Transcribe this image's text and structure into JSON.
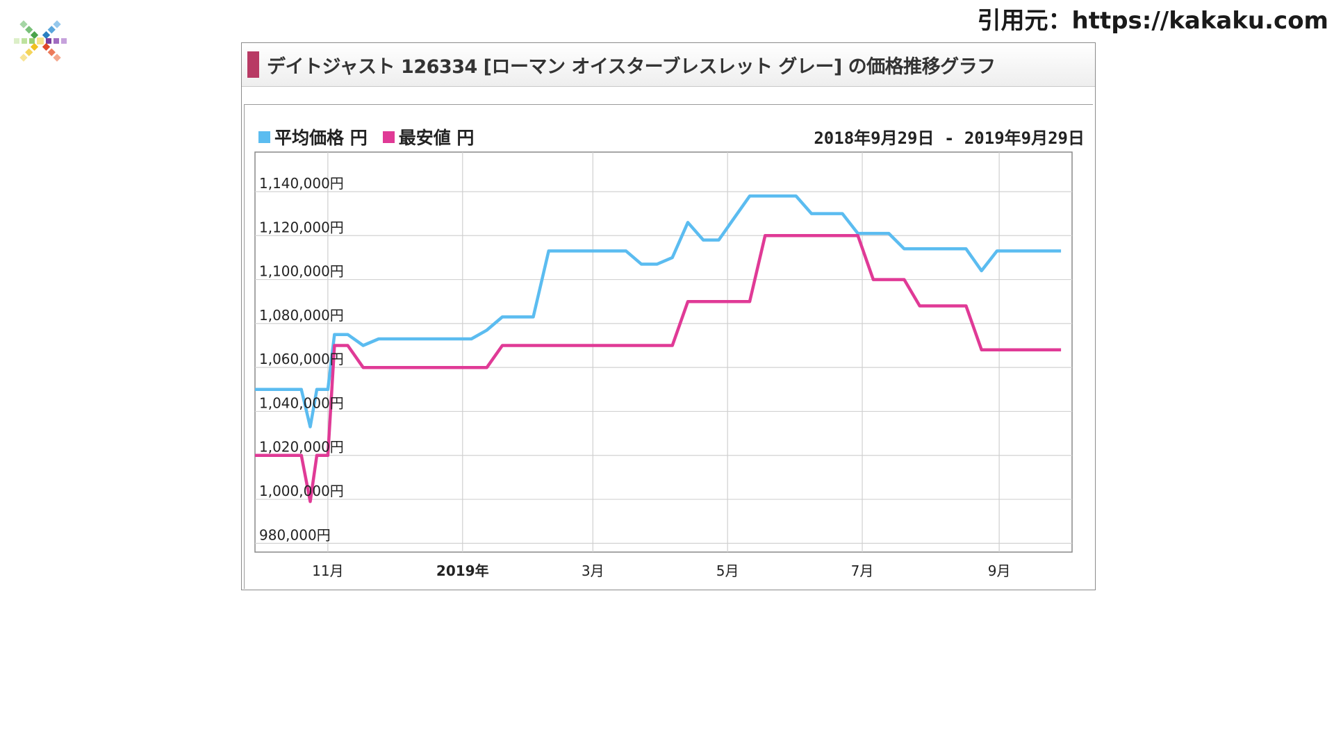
{
  "citation": "引用元：https://kakaku.com",
  "card": {
    "title": "デイトジャスト 126334 [ローマン オイスターブレスレット グレー] の価格推移グラフ",
    "date_range": "2018年9月29日 - 2019年9月29日"
  },
  "colors": {
    "average": "#5bbcf0",
    "lowest": "#e03a96",
    "header_bar": "#b83a64"
  },
  "chart_data": {
    "type": "line",
    "title": "デイトジャスト 126334 [ローマン オイスターブレスレット グレー] の価格推移グラフ",
    "xlabel": "",
    "ylabel": "",
    "x": [
      "2018-09-29",
      "2018-10-06",
      "2018-10-13",
      "2018-10-20",
      "2018-10-24",
      "2018-10-27",
      "2018-11-01",
      "2018-11-04",
      "2018-11-10",
      "2018-11-17",
      "2018-11-24",
      "2018-12-01",
      "2018-12-08",
      "2018-12-15",
      "2018-12-22",
      "2018-12-29",
      "2019-01-05",
      "2019-01-12",
      "2019-01-19",
      "2019-01-26",
      "2019-02-02",
      "2019-02-09",
      "2019-02-16",
      "2019-02-23",
      "2019-03-02",
      "2019-03-09",
      "2019-03-16",
      "2019-03-23",
      "2019-03-30",
      "2019-04-06",
      "2019-04-13",
      "2019-04-20",
      "2019-04-27",
      "2019-05-04",
      "2019-05-11",
      "2019-05-18",
      "2019-05-25",
      "2019-06-01",
      "2019-06-08",
      "2019-06-15",
      "2019-06-22",
      "2019-06-29",
      "2019-07-06",
      "2019-07-13",
      "2019-07-20",
      "2019-07-27",
      "2019-08-03",
      "2019-08-10",
      "2019-08-17",
      "2019-08-24",
      "2019-08-31",
      "2019-09-07",
      "2019-09-14",
      "2019-09-21",
      "2019-09-29"
    ],
    "series": [
      {
        "name": "平均価格 円",
        "color": "#5bbcf0",
        "values": [
          1050000,
          1050000,
          1050000,
          1050000,
          1033000,
          1050000,
          1050000,
          1075000,
          1075000,
          1070000,
          1073000,
          1073000,
          1073000,
          1073000,
          1073000,
          1073000,
          1073000,
          1077000,
          1083000,
          1083000,
          1083000,
          1113000,
          1113000,
          1113000,
          1113000,
          1113000,
          1113000,
          1107000,
          1107000,
          1110000,
          1126000,
          1118000,
          1118000,
          1128000,
          1138000,
          1138000,
          1138000,
          1138000,
          1130000,
          1130000,
          1130000,
          1121000,
          1121000,
          1121000,
          1114000,
          1114000,
          1114000,
          1114000,
          1114000,
          1104000,
          1113000,
          1113000,
          1113000,
          1113000,
          1113000
        ]
      },
      {
        "name": "最安値 円",
        "color": "#e03a96",
        "values": [
          1020000,
          1020000,
          1020000,
          1020000,
          999000,
          1020000,
          1020000,
          1070000,
          1070000,
          1060000,
          1060000,
          1060000,
          1060000,
          1060000,
          1060000,
          1060000,
          1060000,
          1060000,
          1070000,
          1070000,
          1070000,
          1070000,
          1070000,
          1070000,
          1070000,
          1070000,
          1070000,
          1070000,
          1070000,
          1070000,
          1090000,
          1090000,
          1090000,
          1090000,
          1090000,
          1120000,
          1120000,
          1120000,
          1120000,
          1120000,
          1120000,
          1120000,
          1100000,
          1100000,
          1100000,
          1088000,
          1088000,
          1088000,
          1088000,
          1068000,
          1068000,
          1068000,
          1068000,
          1068000,
          1068000
        ]
      }
    ],
    "y_ticks": [
      {
        "value": 980000,
        "label": "980,000円"
      },
      {
        "value": 1000000,
        "label": "1,000,000円"
      },
      {
        "value": 1020000,
        "label": "1,020,000円"
      },
      {
        "value": 1040000,
        "label": "1,040,000円"
      },
      {
        "value": 1060000,
        "label": "1,060,000円"
      },
      {
        "value": 1080000,
        "label": "1,080,000円"
      },
      {
        "value": 1100000,
        "label": "1,100,000円"
      },
      {
        "value": 1120000,
        "label": "1,120,000円"
      },
      {
        "value": 1140000,
        "label": "1,140,000円"
      }
    ],
    "x_ticks": [
      {
        "date": "2018-11-01",
        "label": "11月",
        "bold": false
      },
      {
        "date": "2019-01-01",
        "label": "2019年",
        "bold": true
      },
      {
        "date": "2019-03-01",
        "label": "3月",
        "bold": false
      },
      {
        "date": "2019-05-01",
        "label": "5月",
        "bold": false
      },
      {
        "date": "2019-07-01",
        "label": "7月",
        "bold": false
      },
      {
        "date": "2019-09-01",
        "label": "9月",
        "bold": false
      }
    ],
    "ylim": [
      976000,
      1158000
    ],
    "xlim": [
      "2018-09-29",
      "2019-10-04"
    ],
    "grid": true,
    "legend": "top-left"
  }
}
